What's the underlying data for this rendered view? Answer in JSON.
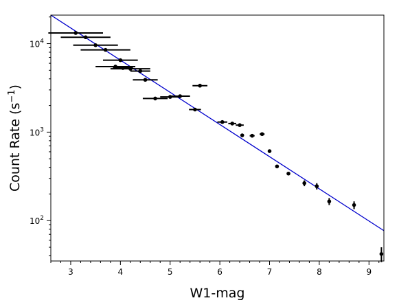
{
  "chart_data": {
    "type": "scatter",
    "title": "",
    "xlabel": "W1-mag",
    "ylabel": {
      "main": "Count Rate (s",
      "sup": "−1",
      "close": ")"
    },
    "xlim": [
      2.6,
      9.3
    ],
    "ylim": [
      35,
      21000
    ],
    "yscale": "log",
    "grid": false,
    "legend": "none",
    "x_ticks": [
      3,
      4,
      5,
      6,
      7,
      8,
      9
    ],
    "y_ticks": [
      {
        "value": 100,
        "base": "10",
        "exp": "2"
      },
      {
        "value": 1000,
        "base": "10",
        "exp": "3"
      },
      {
        "value": 10000,
        "base": "10",
        "exp": "4"
      }
    ],
    "colors": {
      "points": "#000000",
      "fit_line": "#0000cc"
    },
    "points": [
      {
        "x": 3.1,
        "y": 13200,
        "xerr": 0.55,
        "yerr": 0
      },
      {
        "x": 3.3,
        "y": 11800,
        "xerr": 0.5,
        "yerr": 0
      },
      {
        "x": 3.5,
        "y": 9600,
        "xerr": 0.45,
        "yerr": 0
      },
      {
        "x": 3.7,
        "y": 8500,
        "xerr": 0.5,
        "yerr": 0
      },
      {
        "x": 4.0,
        "y": 6500,
        "xerr": 0.35,
        "yerr": 0
      },
      {
        "x": 3.9,
        "y": 5500,
        "xerr": 0.4,
        "yerr": 0
      },
      {
        "x": 4.05,
        "y": 5300,
        "xerr": 0.2,
        "yerr": 0
      },
      {
        "x": 4.2,
        "y": 5200,
        "xerr": 0.4,
        "yerr": 0
      },
      {
        "x": 4.4,
        "y": 4900,
        "xerr": 0.2,
        "yerr": 0
      },
      {
        "x": 4.5,
        "y": 3900,
        "xerr": 0.25,
        "yerr": 0
      },
      {
        "x": 4.7,
        "y": 2400,
        "xerr": 0.25,
        "yerr": 0
      },
      {
        "x": 5.0,
        "y": 2500,
        "xerr": 0.2,
        "yerr": 0
      },
      {
        "x": 5.2,
        "y": 2550,
        "xerr": 0.2,
        "yerr": 0
      },
      {
        "x": 5.6,
        "y": 3350,
        "xerr": 0.15,
        "yerr": 0
      },
      {
        "x": 5.5,
        "y": 1800,
        "xerr": 0.12,
        "yerr": 0
      },
      {
        "x": 6.05,
        "y": 1300,
        "xerr": 0.1,
        "yerr": 0
      },
      {
        "x": 6.25,
        "y": 1250,
        "xerr": 0.08,
        "yerr": 0
      },
      {
        "x": 6.4,
        "y": 1200,
        "xerr": 0.08,
        "yerr": 0
      },
      {
        "x": 6.45,
        "y": 920,
        "xerr": 0,
        "yerr": 0
      },
      {
        "x": 6.65,
        "y": 910,
        "xerr": 0.05,
        "yerr": 0
      },
      {
        "x": 6.85,
        "y": 950,
        "xerr": 0.05,
        "yerr": 0
      },
      {
        "x": 7.0,
        "y": 610,
        "xerr": 0,
        "yerr": 0
      },
      {
        "x": 7.15,
        "y": 410,
        "xerr": 0,
        "yerr": 0
      },
      {
        "x": 7.38,
        "y": 340,
        "xerr": 0,
        "yerr": 0
      },
      {
        "x": 7.7,
        "y": 265,
        "xerr": 0,
        "yerr": 20
      },
      {
        "x": 7.95,
        "y": 245,
        "xerr": 0,
        "yerr": 20
      },
      {
        "x": 8.2,
        "y": 165,
        "xerr": 0,
        "yerr": 15
      },
      {
        "x": 8.7,
        "y": 150,
        "xerr": 0,
        "yerr": 15
      },
      {
        "x": 9.25,
        "y": 42,
        "xerr": 0,
        "yerr": 8
      }
    ],
    "fit_line": {
      "x": [
        2.6,
        9.3
      ],
      "y": [
        21000,
        77
      ]
    }
  }
}
